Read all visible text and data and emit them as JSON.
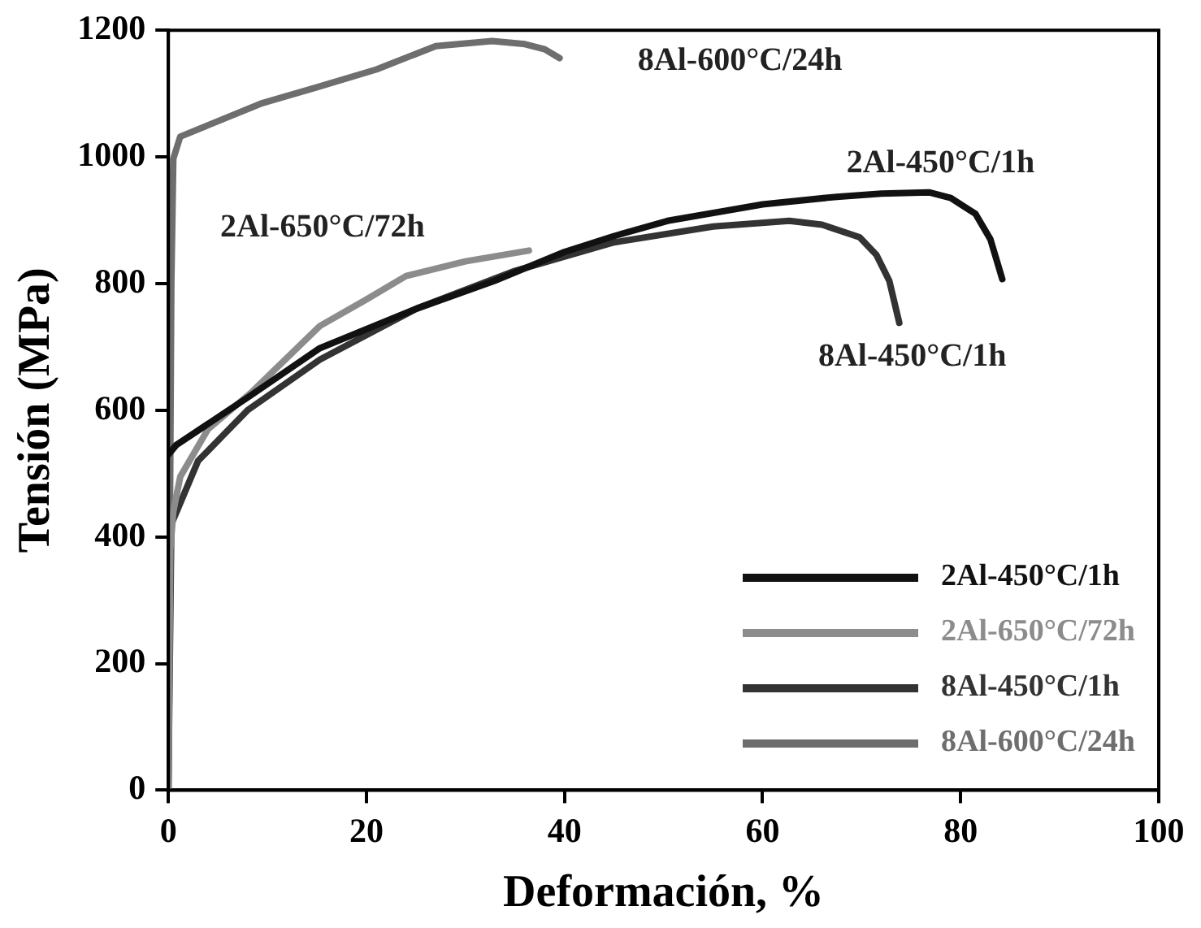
{
  "chart_data": {
    "type": "line",
    "xlabel": "Deformación, %",
    "ylabel": "Tensión (MPa)",
    "xlim": [
      0,
      100
    ],
    "xticks": [
      0,
      20,
      40,
      60,
      80,
      100
    ],
    "ylim": [
      0,
      1200
    ],
    "yticks": [
      0,
      200,
      400,
      600,
      800,
      1000,
      1200
    ],
    "grid": false,
    "legend": "bottom right",
    "marker": "none",
    "line_style": "solid",
    "series": [
      {
        "name": "2Al-450°C/1h",
        "color": "#111111",
        "x": [
          0,
          0.8,
          8,
          15.3,
          25,
          32.9,
          40,
          45,
          50.4,
          60,
          67.5,
          72,
          76.8,
          79,
          81.5,
          83,
          84.2
        ],
        "values": [
          530,
          545,
          620,
          698,
          760,
          804,
          850,
          875,
          899,
          925,
          937,
          942,
          944,
          935,
          910,
          870,
          807
        ]
      },
      {
        "name": "2Al-650°C/72h",
        "color": "#8c8c8c",
        "x": [
          0,
          0.2,
          0.5,
          1.2,
          4,
          8.3,
          15.3,
          20,
          24,
          30,
          36.4
        ],
        "values": [
          0,
          380,
          440,
          495,
          570,
          627,
          733,
          775,
          812,
          835,
          852
        ]
      },
      {
        "name": "8Al-450°C/1h",
        "color": "#333333",
        "x": [
          0,
          0.3,
          3,
          8,
          15.3,
          25,
          35,
          45,
          55,
          62.7,
          66,
          69.8,
          71.5,
          72.8,
          73.8
        ],
        "values": [
          0,
          420,
          520,
          600,
          680,
          760,
          820,
          865,
          890,
          899,
          893,
          873,
          845,
          804,
          738
        ]
      },
      {
        "name": "8Al-600°C/24h",
        "color": "#6e6e6e",
        "x": [
          0,
          0.3,
          0.5,
          1.2,
          4,
          9.5,
          15,
          21,
          27,
          32.7,
          36,
          38,
          39.5
        ],
        "values": [
          0,
          800,
          997,
          1032,
          1050,
          1085,
          1110,
          1138,
          1175,
          1183,
          1178,
          1170,
          1156
        ]
      }
    ],
    "annotations": [
      "2Al-450°C/1h",
      "2Al-650°C/72h",
      "8Al-450°C/1h",
      "8Al-600°C/24h"
    ]
  }
}
